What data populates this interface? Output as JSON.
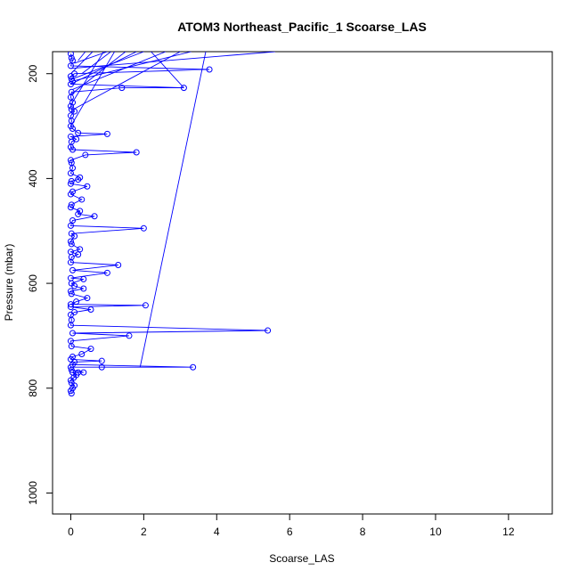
{
  "chart_data": {
    "type": "line",
    "title": "ATOM3 Northeast_Pacific_1 Scoarse_LAS",
    "xlabel": "Scoarse_LAS",
    "ylabel": "Pressure (mbar)",
    "xlim": [
      -0.5,
      13.2
    ],
    "ylim": [
      1040,
      158
    ],
    "y_reversed": true,
    "x_ticks": [
      0,
      2,
      4,
      6,
      8,
      10,
      12
    ],
    "y_ticks": [
      200,
      400,
      600,
      800,
      1000
    ],
    "grid": false,
    "series_color": "#0000ff",
    "marker": "open-circle",
    "series": [
      {
        "points": [
          [
            0.02,
            810
          ],
          [
            0.0,
            805
          ],
          [
            0.05,
            800
          ],
          [
            0.1,
            795
          ],
          [
            0.02,
            790
          ],
          [
            0.0,
            785
          ],
          [
            0.08,
            780
          ],
          [
            0.15,
            775
          ],
          [
            0.05,
            770
          ],
          [
            0.2,
            770
          ],
          [
            0.35,
            770
          ],
          [
            0.02,
            765
          ],
          [
            0.0,
            760
          ],
          [
            0.85,
            760
          ],
          [
            3.35,
            760
          ],
          [
            0.05,
            755
          ],
          [
            0.1,
            750
          ],
          [
            0.85,
            748
          ],
          [
            0.0,
            745
          ],
          [
            0.05,
            740
          ],
          [
            0.3,
            735
          ],
          [
            0.55,
            725
          ],
          [
            0.02,
            720
          ],
          [
            0.0,
            710
          ],
          [
            1.6,
            700
          ],
          [
            0.05,
            695
          ],
          [
            5.4,
            690
          ],
          [
            0.0,
            680
          ],
          [
            0.02,
            670
          ],
          [
            0.0,
            660
          ],
          [
            0.1,
            655
          ],
          [
            0.55,
            650
          ],
          [
            0.0,
            645
          ],
          [
            2.05,
            642
          ],
          [
            0.0,
            640
          ],
          [
            0.15,
            635
          ],
          [
            0.45,
            628
          ],
          [
            0.02,
            620
          ],
          [
            0.0,
            615
          ],
          [
            0.35,
            610
          ],
          [
            0.1,
            605
          ],
          [
            0.02,
            600
          ],
          [
            0.35,
            592
          ],
          [
            0.0,
            590
          ],
          [
            1.0,
            580
          ],
          [
            0.05,
            575
          ],
          [
            1.3,
            565
          ],
          [
            0.0,
            560
          ],
          [
            0.02,
            550
          ],
          [
            0.2,
            545
          ],
          [
            0.0,
            540
          ],
          [
            0.25,
            535
          ],
          [
            0.02,
            525
          ],
          [
            0.0,
            520
          ],
          [
            0.1,
            510
          ],
          [
            0.02,
            505
          ],
          [
            2.0,
            495
          ],
          [
            0.0,
            490
          ],
          [
            0.05,
            480
          ],
          [
            0.65,
            472
          ],
          [
            0.2,
            468
          ],
          [
            0.25,
            462
          ],
          [
            0.0,
            455
          ],
          [
            0.02,
            450
          ],
          [
            0.3,
            440
          ],
          [
            0.0,
            430
          ],
          [
            0.05,
            425
          ],
          [
            0.45,
            415
          ],
          [
            0.0,
            410
          ],
          [
            0.02,
            405
          ],
          [
            0.2,
            402
          ],
          [
            0.25,
            398
          ],
          [
            0.0,
            390
          ],
          [
            0.05,
            380
          ],
          [
            0.02,
            370
          ],
          [
            0.0,
            365
          ],
          [
            0.4,
            355
          ],
          [
            1.8,
            350
          ],
          [
            0.05,
            345
          ],
          [
            0.0,
            340
          ],
          [
            0.02,
            330
          ],
          [
            0.15,
            325
          ],
          [
            0.0,
            320
          ],
          [
            1.0,
            315
          ],
          [
            0.2,
            313
          ],
          [
            0.05,
            305
          ],
          [
            0.0,
            300
          ],
          [
            0.02,
            290
          ],
          [
            0.0,
            280
          ],
          [
            0.1,
            272
          ],
          [
            0.02,
            268
          ],
          [
            0.0,
            262
          ],
          [
            0.05,
            255
          ],
          [
            0.0,
            245
          ],
          [
            0.02,
            235
          ],
          [
            1.4,
            227
          ],
          [
            3.1,
            227
          ],
          [
            0.0,
            220
          ],
          [
            0.05,
            215
          ],
          [
            0.02,
            210
          ],
          [
            0.0,
            205
          ],
          [
            0.1,
            200
          ],
          [
            3.8,
            192
          ],
          [
            0.0,
            185
          ],
          [
            0.05,
            175
          ],
          [
            0.02,
            170
          ],
          [
            0.0,
            162
          ]
        ]
      }
    ],
    "lines_off_top": [
      [
        0.0,
        260,
        0.9,
        158
      ],
      [
        0.0,
        240,
        1.5,
        158
      ],
      [
        0.05,
        210,
        2.0,
        158
      ],
      [
        0.0,
        300,
        1.2,
        158
      ],
      [
        0.02,
        270,
        3.0,
        158
      ],
      [
        0.0,
        190,
        5.6,
        158
      ],
      [
        0.1,
        180,
        1.0,
        158
      ],
      [
        0.0,
        200,
        0.6,
        158
      ],
      [
        0.05,
        230,
        2.6,
        158
      ],
      [
        1.9,
        760,
        3.7,
        158
      ],
      [
        0.0,
        220,
        1.8,
        158
      ],
      [
        0.2,
        175,
        0.4,
        158
      ],
      [
        3.1,
        227,
        2.2,
        158
      ],
      [
        0.0,
        215,
        3.3,
        158
      ],
      [
        0.3,
        200,
        1.1,
        158
      ]
    ]
  }
}
